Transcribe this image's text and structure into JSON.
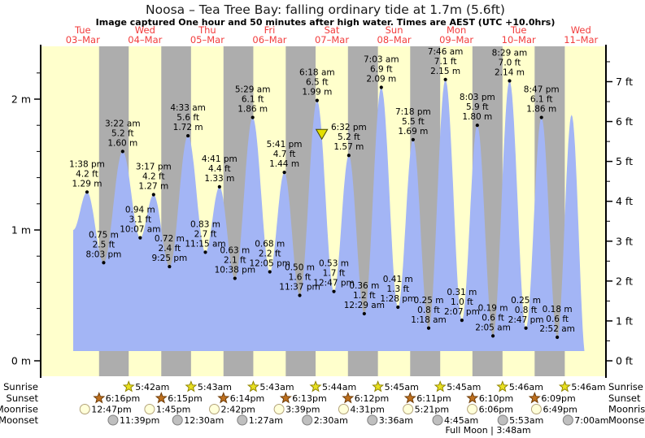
{
  "title": "Noosa – Tea Tree Bay: falling ordinary tide at 1.7m (5.6ft)",
  "subtitle": "Image captured One hour and 50 minutes after high water. Times are AEST (UTC +10.0hrs)",
  "footnote": "Full Moon | 3:48am",
  "colors": {
    "daylight_band": "#ffffcc",
    "night_band": "#adadad",
    "tide_fill": "#a3b5f5",
    "day_label": "#f23c3c",
    "axis": "#000000",
    "text": "#000000",
    "marker_fill": "#e3df00",
    "marker_stroke": "#444400",
    "sunrise_star_fill": "#e8e020",
    "sunrise_star_stroke": "#8f8400",
    "sunset_star_fill": "#bd6f1e",
    "sunset_star_stroke": "#6e3c08",
    "moonrise_fill": "#ffffd9",
    "moonrise_stroke": "#b3a37a",
    "moonset_fill": "#bfbfbf",
    "moonset_stroke": "#7f7f7f"
  },
  "chart_data": {
    "type": "area",
    "title": "Noosa – Tea Tree Bay tide height",
    "x_unit": "hours from Tue 03-Mar 00:00 AEST",
    "y_unit": "m",
    "ylim": [
      -0.11,
      2.4
    ],
    "xlim": [
      -4.2,
      213.6
    ],
    "grid": false,
    "left_axis_ticks": [
      {
        "v": 0,
        "label": "0 m"
      },
      {
        "v": 1,
        "label": "1 m"
      },
      {
        "v": 2,
        "label": "2 m"
      }
    ],
    "left_axis_minor_step_m": 0.2,
    "right_axis_ticks": [
      {
        "v": 0,
        "label": "0 ft"
      },
      {
        "v": 1,
        "label": "1 ft"
      },
      {
        "v": 2,
        "label": "2 ft"
      },
      {
        "v": 3,
        "label": "3 ft"
      },
      {
        "v": 4,
        "label": "4 ft"
      },
      {
        "v": 5,
        "label": "5 ft"
      },
      {
        "v": 6,
        "label": "6 ft"
      },
      {
        "v": 7,
        "label": "7 ft"
      }
    ],
    "days": [
      {
        "name": "Tue",
        "date": "03–Mar"
      },
      {
        "name": "Wed",
        "date": "04–Mar"
      },
      {
        "name": "Thu",
        "date": "05–Mar"
      },
      {
        "name": "Fri",
        "date": "06–Mar"
      },
      {
        "name": "Sat",
        "date": "07–Mar"
      },
      {
        "name": "Sun",
        "date": "08–Mar"
      },
      {
        "name": "Mon",
        "date": "09–Mar"
      },
      {
        "name": "Tue",
        "date": "10–Mar"
      },
      {
        "name": "Wed",
        "date": "11–Mar"
      }
    ],
    "curve_start": {
      "t": 8.3,
      "h": 1.0
    },
    "curve_end_high": {
      "t": 200.4,
      "h": 1.88
    },
    "curve_end": {
      "t": 206.0,
      "h": 0.0
    },
    "current_marker": {
      "t": 104.13,
      "h": 1.7,
      "description": "current time, falling tide at 1.7m"
    },
    "extremes": [
      {
        "t": 13.633,
        "type": "high",
        "time": "1:38 pm",
        "ft": "4.2 ft",
        "m": "1.29 m"
      },
      {
        "t": 20.05,
        "type": "low",
        "time": "8:03 pm",
        "ft": "2.5 ft",
        "m": "0.75 m"
      },
      {
        "t": 27.367,
        "type": "high",
        "time": "3:22 am",
        "ft": "5.2 ft",
        "m": "1.60 m"
      },
      {
        "t": 34.117,
        "type": "low",
        "time": "10:07 am",
        "ft": "3.1 ft",
        "m": "0.94 m"
      },
      {
        "t": 39.283,
        "type": "high",
        "time": "3:17 pm",
        "ft": "4.2 ft",
        "m": "1.27 m"
      },
      {
        "t": 45.417,
        "type": "low",
        "time": "9:25 pm",
        "ft": "2.4 ft",
        "m": "0.72 m"
      },
      {
        "t": 52.55,
        "type": "high",
        "time": "4:33 am",
        "ft": "5.6 ft",
        "m": "1.72 m"
      },
      {
        "t": 59.25,
        "type": "low",
        "time": "11:15 am",
        "ft": "2.7 ft",
        "m": "0.83 m"
      },
      {
        "t": 64.683,
        "type": "high",
        "time": "4:41 pm",
        "ft": "4.4 ft",
        "m": "1.33 m"
      },
      {
        "t": 70.633,
        "type": "low",
        "time": "10:38 pm",
        "ft": "2.1 ft",
        "m": "0.63 m"
      },
      {
        "t": 77.483,
        "type": "high",
        "time": "5:29 am",
        "ft": "6.1 ft",
        "m": "1.86 m"
      },
      {
        "t": 84.083,
        "type": "low",
        "time": "12:05 pm",
        "ft": "2.2 ft",
        "m": "0.68 m"
      },
      {
        "t": 89.683,
        "type": "high",
        "time": "5:41 pm",
        "ft": "4.7 ft",
        "m": "1.44 m"
      },
      {
        "t": 95.617,
        "type": "low",
        "time": "11:37 pm",
        "ft": "1.6 ft",
        "m": "0.50 m"
      },
      {
        "t": 102.3,
        "type": "high",
        "time": "6:18 am",
        "ft": "6.5 ft",
        "m": "1.99 m"
      },
      {
        "t": 108.783,
        "type": "low",
        "time": "12:47 pm",
        "ft": "1.7 ft",
        "m": "0.53 m"
      },
      {
        "t": 114.533,
        "type": "high",
        "time": "6:32 pm",
        "ft": "5.2 ft",
        "m": "1.57 m"
      },
      {
        "t": 120.483,
        "type": "low",
        "time": "12:29 am",
        "ft": "1.2 ft",
        "m": "0.36 m"
      },
      {
        "t": 127.05,
        "type": "high",
        "time": "7:03 am",
        "ft": "6.9 ft",
        "m": "2.09 m"
      },
      {
        "t": 133.467,
        "type": "low",
        "time": "1:28 pm",
        "ft": "1.3 ft",
        "m": "0.41 m"
      },
      {
        "t": 139.3,
        "type": "high",
        "time": "7:18 pm",
        "ft": "5.5 ft",
        "m": "1.69 m"
      },
      {
        "t": 145.3,
        "type": "low",
        "time": "1:18 am",
        "ft": "0.8 ft",
        "m": "0.25 m"
      },
      {
        "t": 151.767,
        "type": "high",
        "time": "7:46 am",
        "ft": "7.1 ft",
        "m": "2.15 m"
      },
      {
        "t": 158.117,
        "type": "low",
        "time": "2:07 pm",
        "ft": "1.0 ft",
        "m": "0.31 m"
      },
      {
        "t": 164.05,
        "type": "high",
        "time": "8:03 pm",
        "ft": "5.9 ft",
        "m": "1.80 m"
      },
      {
        "t": 170.083,
        "type": "low",
        "time": "2:05 am",
        "ft": "0.6 ft",
        "m": "0.19 m"
      },
      {
        "t": 176.483,
        "type": "high",
        "time": "8:29 am",
        "ft": "7.0 ft",
        "m": "2.14 m"
      },
      {
        "t": 182.783,
        "type": "low",
        "time": "2:47 pm",
        "ft": "0.8 ft",
        "m": "0.25 m"
      },
      {
        "t": 188.783,
        "type": "high",
        "time": "8:47 pm",
        "ft": "6.1 ft",
        "m": "1.86 m"
      },
      {
        "t": 194.867,
        "type": "low",
        "time": "2:52 am",
        "ft": "0.6 ft",
        "m": "0.18 m"
      }
    ]
  },
  "astro": {
    "rows": [
      {
        "label": "Sunrise",
        "icon": "sunrise-star",
        "entries": [
          {
            "time": "5:42am",
            "t": 29.7
          },
          {
            "time": "5:43am",
            "t": 53.72
          },
          {
            "time": "5:43am",
            "t": 77.72
          },
          {
            "time": "5:44am",
            "t": 101.73
          },
          {
            "time": "5:45am",
            "t": 125.75
          },
          {
            "time": "5:45am",
            "t": 149.75
          },
          {
            "time": "5:46am",
            "t": 173.77
          },
          {
            "time": "5:46am",
            "t": 197.77
          }
        ]
      },
      {
        "label": "Sunset",
        "icon": "sunset-star",
        "entries": [
          {
            "time": "6:16pm",
            "t": 18.27
          },
          {
            "time": "6:15pm",
            "t": 42.25
          },
          {
            "time": "6:14pm",
            "t": 66.23
          },
          {
            "time": "6:13pm",
            "t": 90.22
          },
          {
            "time": "6:12pm",
            "t": 114.2
          },
          {
            "time": "6:11pm",
            "t": 138.18
          },
          {
            "time": "6:10pm",
            "t": 162.17
          },
          {
            "time": "6:09pm",
            "t": 186.15
          }
        ]
      },
      {
        "label": "Moonrise",
        "icon": "moonrise-circle",
        "entries": [
          {
            "time": "12:47pm",
            "t": 12.78
          },
          {
            "time": "1:45pm",
            "t": 37.75
          },
          {
            "time": "2:42pm",
            "t": 62.7
          },
          {
            "time": "3:39pm",
            "t": 87.65
          },
          {
            "time": "4:31pm",
            "t": 112.52
          },
          {
            "time": "5:21pm",
            "t": 137.35
          },
          {
            "time": "6:06pm",
            "t": 162.1
          },
          {
            "time": "6:49pm",
            "t": 186.82
          }
        ]
      },
      {
        "label": "Moonset",
        "icon": "moonset-circle",
        "entries": [
          {
            "time": "11:39pm",
            "t": 23.65
          },
          {
            "time": "12:30am",
            "t": 48.5
          },
          {
            "time": "1:27am",
            "t": 73.45
          },
          {
            "time": "2:30am",
            "t": 98.5
          },
          {
            "time": "3:36am",
            "t": 123.6
          },
          {
            "time": "4:45am",
            "t": 148.75
          },
          {
            "time": "5:53am",
            "t": 173.88
          },
          {
            "time": "7:00am",
            "t": 199.0
          }
        ]
      }
    ]
  }
}
